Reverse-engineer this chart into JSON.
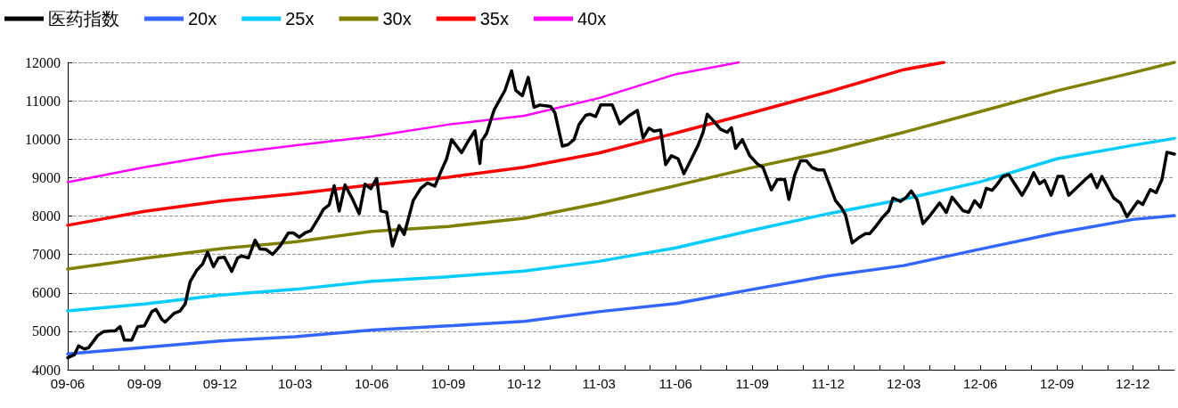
{
  "chart_data": {
    "type": "line",
    "legend": "top left",
    "grid": "y",
    "marker": "none",
    "line_style": "solid",
    "xlim": [
      "2009-06-01",
      "2013-01-20"
    ],
    "xticks": [
      {
        "value": "2009-06-01",
        "label": "09-06"
      },
      {
        "value": "2009-07-01",
        "label": null
      },
      {
        "value": "2009-08-01",
        "label": null
      },
      {
        "value": "2009-09-01",
        "label": "09-09"
      },
      {
        "value": "2009-10-01",
        "label": null
      },
      {
        "value": "2009-11-01",
        "label": null
      },
      {
        "value": "2009-12-01",
        "label": "09-12"
      },
      {
        "value": "2010-01-01",
        "label": null
      },
      {
        "value": "2010-02-01",
        "label": null
      },
      {
        "value": "2010-03-01",
        "label": "10-03"
      },
      {
        "value": "2010-04-01",
        "label": null
      },
      {
        "value": "2010-05-01",
        "label": null
      },
      {
        "value": "2010-06-01",
        "label": "10-06"
      },
      {
        "value": "2010-07-01",
        "label": null
      },
      {
        "value": "2010-08-01",
        "label": null
      },
      {
        "value": "2010-09-01",
        "label": "10-09"
      },
      {
        "value": "2010-10-01",
        "label": null
      },
      {
        "value": "2010-11-01",
        "label": null
      },
      {
        "value": "2010-12-01",
        "label": "10-12"
      },
      {
        "value": "2011-01-01",
        "label": null
      },
      {
        "value": "2011-02-01",
        "label": null
      },
      {
        "value": "2011-03-01",
        "label": "11-03"
      },
      {
        "value": "2011-04-01",
        "label": null
      },
      {
        "value": "2011-05-01",
        "label": null
      },
      {
        "value": "2011-06-01",
        "label": "11-06"
      },
      {
        "value": "2011-07-01",
        "label": null
      },
      {
        "value": "2011-08-01",
        "label": null
      },
      {
        "value": "2011-09-01",
        "label": "11-09"
      },
      {
        "value": "2011-10-01",
        "label": null
      },
      {
        "value": "2011-11-01",
        "label": null
      },
      {
        "value": "2011-12-01",
        "label": "11-12"
      },
      {
        "value": "2012-01-01",
        "label": null
      },
      {
        "value": "2012-02-01",
        "label": null
      },
      {
        "value": "2012-03-01",
        "label": "12-03"
      },
      {
        "value": "2012-04-01",
        "label": null
      },
      {
        "value": "2012-05-01",
        "label": null
      },
      {
        "value": "2012-06-01",
        "label": "12-06"
      },
      {
        "value": "2012-07-01",
        "label": null
      },
      {
        "value": "2012-08-01",
        "label": null
      },
      {
        "value": "2012-09-01",
        "label": "12-09"
      },
      {
        "value": "2012-10-01",
        "label": null
      },
      {
        "value": "2012-11-01",
        "label": null
      },
      {
        "value": "2012-12-01",
        "label": "12-12"
      },
      {
        "value": "2013-01-01",
        "label": null
      }
    ],
    "ylim": [
      4000,
      12000
    ],
    "yticks": [
      4000,
      5000,
      6000,
      7000,
      8000,
      9000,
      10000,
      11000,
      12000
    ],
    "series": [
      {
        "name": "医药指数",
        "color": "#000000",
        "x": [
          "2009-06-01",
          "2009-06-09",
          "2009-06-14",
          "2009-06-21",
          "2009-06-26",
          "2009-07-07",
          "2009-07-14",
          "2009-07-23",
          "2009-07-28",
          "2009-08-03",
          "2009-08-08",
          "2009-08-17",
          "2009-08-24",
          "2009-09-01",
          "2009-09-10",
          "2009-09-15",
          "2009-09-22",
          "2009-09-26",
          "2009-10-07",
          "2009-10-14",
          "2009-10-20",
          "2009-10-26",
          "2009-11-03",
          "2009-11-10",
          "2009-11-16",
          "2009-11-23",
          "2009-11-29",
          "2009-12-06",
          "2009-12-15",
          "2009-12-22",
          "2009-12-27",
          "2010-01-04",
          "2010-01-12",
          "2010-01-18",
          "2010-01-25",
          "2010-02-02",
          "2010-02-11",
          "2010-02-21",
          "2010-02-27",
          "2010-03-06",
          "2010-03-13",
          "2010-03-20",
          "2010-03-29",
          "2010-04-04",
          "2010-04-11",
          "2010-04-17",
          "2010-04-23",
          "2010-04-30",
          "2010-05-09",
          "2010-05-17",
          "2010-05-24",
          "2010-05-31",
          "2010-06-07",
          "2010-06-12",
          "2010-06-19",
          "2010-06-26",
          "2010-07-04",
          "2010-07-10",
          "2010-07-21",
          "2010-07-30",
          "2010-08-07",
          "2010-08-16",
          "2010-08-23",
          "2010-08-30",
          "2010-09-05",
          "2010-09-17",
          "2010-09-26",
          "2010-10-03",
          "2010-10-09",
          "2010-10-11",
          "2010-10-17",
          "2010-10-26",
          "2010-11-08",
          "2010-11-16",
          "2010-11-21",
          "2010-11-29",
          "2010-12-06",
          "2010-12-13",
          "2010-12-20",
          "2011-01-02",
          "2011-01-07",
          "2011-01-16",
          "2011-01-23",
          "2011-01-30",
          "2011-02-05",
          "2011-02-13",
          "2011-02-18",
          "2011-02-25",
          "2011-03-03",
          "2011-03-17",
          "2011-03-26",
          "2011-04-06",
          "2011-04-16",
          "2011-04-23",
          "2011-04-30",
          "2011-05-06",
          "2011-05-14",
          "2011-05-20",
          "2011-05-27",
          "2011-06-04",
          "2011-06-11",
          "2011-06-20",
          "2011-06-28",
          "2011-07-04",
          "2011-07-09",
          "2011-07-16",
          "2011-07-25",
          "2011-08-02",
          "2011-08-07",
          "2011-08-12",
          "2011-08-20",
          "2011-08-29",
          "2011-09-07",
          "2011-09-14",
          "2011-09-24",
          "2011-10-01",
          "2011-10-05",
          "2011-10-10",
          "2011-10-15",
          "2011-10-22",
          "2011-10-29",
          "2011-11-05",
          "2011-11-12",
          "2011-11-19",
          "2011-11-26",
          "2011-12-03",
          "2011-12-10",
          "2011-12-17",
          "2011-12-22",
          "2011-12-30",
          "2012-01-08",
          "2012-01-15",
          "2012-01-20",
          "2012-01-27",
          "2012-02-04",
          "2012-02-12",
          "2012-02-17",
          "2012-02-26",
          "2012-03-04",
          "2012-03-10",
          "2012-03-17",
          "2012-03-24",
          "2012-04-01",
          "2012-04-13",
          "2012-04-21",
          "2012-04-28",
          "2012-05-11",
          "2012-05-18",
          "2012-05-25",
          "2012-06-01",
          "2012-06-08",
          "2012-06-15",
          "2012-06-21",
          "2012-06-28",
          "2012-07-05",
          "2012-07-12",
          "2012-07-21",
          "2012-07-29",
          "2012-08-04",
          "2012-08-11",
          "2012-08-17",
          "2012-08-25",
          "2012-09-02",
          "2012-09-08",
          "2012-09-15",
          "2012-10-05",
          "2012-10-12",
          "2012-10-19",
          "2012-10-25",
          "2012-11-08",
          "2012-11-16",
          "2012-11-24",
          "2012-12-07",
          "2012-12-13",
          "2012-12-22",
          "2012-12-29",
          "2013-01-05",
          "2013-01-11",
          "2013-01-20"
        ],
        "values": [
          4310,
          4390,
          4620,
          4540,
          4570,
          4890,
          4990,
          5010,
          5010,
          5120,
          4770,
          4770,
          5120,
          5140,
          5510,
          5570,
          5310,
          5240,
          5470,
          5530,
          5710,
          6290,
          6590,
          6750,
          7060,
          6680,
          6910,
          6930,
          6560,
          6910,
          6960,
          6910,
          7370,
          7140,
          7130,
          7000,
          7220,
          7560,
          7560,
          7450,
          7560,
          7620,
          7940,
          8170,
          8290,
          8790,
          8130,
          8810,
          8440,
          8060,
          8830,
          8710,
          8980,
          8130,
          8100,
          7220,
          7750,
          7520,
          8410,
          8720,
          8860,
          8780,
          9150,
          9490,
          9990,
          9650,
          9990,
          10220,
          9370,
          9950,
          10150,
          10760,
          11270,
          11780,
          11270,
          11130,
          11610,
          10830,
          10890,
          10850,
          10690,
          9820,
          9860,
          9990,
          10380,
          10620,
          10650,
          10590,
          10890,
          10890,
          10400,
          10610,
          10750,
          10030,
          10290,
          10210,
          10240,
          9340,
          9570,
          9490,
          9100,
          9490,
          9840,
          10180,
          10650,
          10490,
          10260,
          10180,
          10300,
          9760,
          9990,
          9570,
          9360,
          9260,
          8680,
          8950,
          8950,
          8950,
          8430,
          9070,
          9440,
          9440,
          9260,
          9200,
          9200,
          8800,
          8400,
          8220,
          8030,
          7300,
          7450,
          7540,
          7540,
          7720,
          7950,
          8140,
          8470,
          8380,
          8490,
          8650,
          8420,
          7800,
          8000,
          8340,
          8090,
          8490,
          8140,
          8100,
          8400,
          8230,
          8720,
          8670,
          8820,
          9030,
          9080,
          8840,
          8540,
          8840,
          9130,
          8840,
          8930,
          8540,
          9030,
          9030,
          8540,
          8950,
          9080,
          8740,
          9030,
          8470,
          8340,
          7980,
          8380,
          8300,
          8690,
          8610,
          8950,
          9660,
          9610
        ]
      },
      {
        "name": "20x",
        "color": "#3366ff",
        "x": [
          "2009-06-01",
          "2009-09-01",
          "2009-12-01",
          "2010-03-01",
          "2010-06-01",
          "2010-09-01",
          "2010-12-01",
          "2011-03-01",
          "2011-06-01",
          "2011-09-01",
          "2011-12-01",
          "2012-03-01",
          "2012-06-01",
          "2012-09-01",
          "2012-12-01",
          "2013-01-20"
        ],
        "values": [
          4410,
          4580,
          4750,
          4860,
          5030,
          5140,
          5260,
          5510,
          5720,
          6090,
          6440,
          6710,
          7140,
          7560,
          7910,
          8010
        ]
      },
      {
        "name": "25x",
        "color": "#00ccff",
        "x": [
          "2009-06-01",
          "2009-09-01",
          "2009-12-01",
          "2010-03-01",
          "2010-06-01",
          "2010-09-01",
          "2010-12-01",
          "2011-03-01",
          "2011-06-01",
          "2011-09-01",
          "2011-12-01",
          "2012-03-01",
          "2012-06-01",
          "2012-09-01",
          "2012-12-01",
          "2013-01-20"
        ],
        "values": [
          5530,
          5710,
          5940,
          6090,
          6300,
          6420,
          6570,
          6820,
          7170,
          7630,
          8060,
          8440,
          8890,
          9490,
          9840,
          10020
        ]
      },
      {
        "name": "30x",
        "color": "#808000",
        "x": [
          "2009-06-01",
          "2009-09-01",
          "2009-12-01",
          "2010-03-01",
          "2010-06-01",
          "2010-09-01",
          "2010-12-01",
          "2011-03-01",
          "2011-06-01",
          "2011-09-01",
          "2011-12-01",
          "2012-03-01",
          "2012-06-01",
          "2012-09-01",
          "2012-12-01",
          "2013-01-20"
        ],
        "values": [
          6620,
          6900,
          7150,
          7330,
          7600,
          7730,
          7940,
          8330,
          8790,
          9260,
          9680,
          10180,
          10720,
          11260,
          11730,
          12000
        ]
      },
      {
        "name": "35x",
        "color": "#ff0000",
        "x": [
          "2009-06-01",
          "2009-09-01",
          "2009-12-01",
          "2010-03-01",
          "2010-06-01",
          "2010-09-01",
          "2010-12-01",
          "2011-03-01",
          "2011-06-01",
          "2011-09-01",
          "2011-12-01",
          "2012-03-01",
          "2012-04-18"
        ],
        "values": [
          7760,
          8120,
          8390,
          8580,
          8810,
          9010,
          9270,
          9640,
          10160,
          10690,
          11230,
          11810,
          12000
        ]
      },
      {
        "name": "40x",
        "color": "#ff00ff",
        "x": [
          "2009-06-01",
          "2009-09-01",
          "2009-12-01",
          "2010-03-01",
          "2010-06-01",
          "2010-09-01",
          "2010-12-01",
          "2011-03-01",
          "2011-06-01",
          "2011-08-16"
        ],
        "values": [
          8880,
          9270,
          9600,
          9840,
          10070,
          10380,
          10610,
          11070,
          11690,
          12000
        ]
      }
    ]
  }
}
